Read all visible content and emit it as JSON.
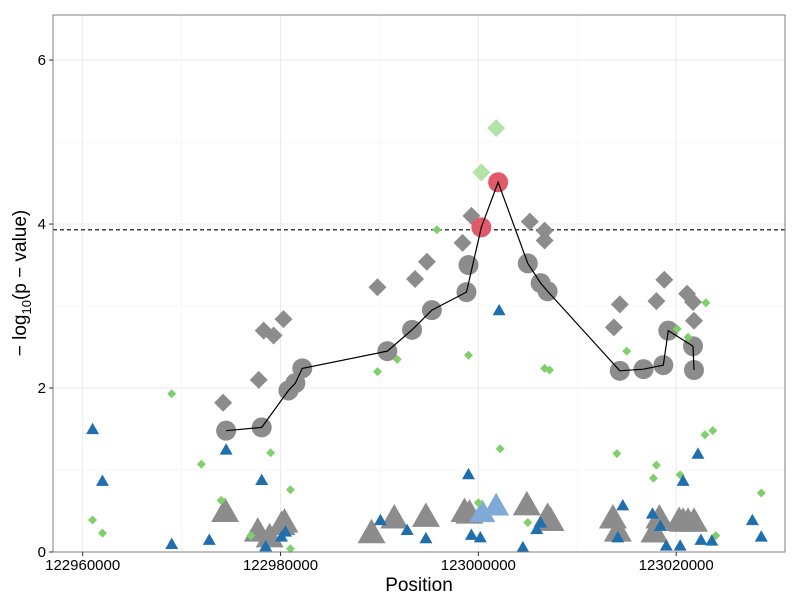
{
  "chart_data": {
    "type": "scatter",
    "xlabel": "Position",
    "ylabel_parts": {
      "pre": "− log",
      "sub": "10",
      "post": "(p − value)"
    },
    "xlim": [
      122957000,
      123031000
    ],
    "ylim": [
      0,
      6.55
    ],
    "x_ticks": [
      122960000,
      122980000,
      123000000,
      123020000
    ],
    "x_tick_labels": [
      "122960000",
      "122980000",
      "123000000",
      "123020000"
    ],
    "y_ticks": [
      0,
      2,
      4,
      6
    ],
    "y_tick_labels": [
      "0",
      "2",
      "4",
      "6"
    ],
    "threshold": 3.93,
    "grid": true,
    "legend": "none",
    "colors": {
      "gray": "#8c8c8c",
      "green": "#7fcf6b",
      "green_light": "#b5e2a6",
      "blue": "#1f6fae",
      "blue_light": "#7fa9d6",
      "red": "#e05a6a",
      "line": "#000000"
    },
    "series": [
      {
        "key": "gray_circles",
        "shape": "circle",
        "color": "gray",
        "size": 10,
        "points": [
          [
            122974500,
            1.48
          ],
          [
            122978100,
            1.52
          ],
          [
            122980800,
            1.97
          ],
          [
            122981500,
            2.06
          ],
          [
            122982200,
            2.24
          ],
          [
            122990800,
            2.45
          ],
          [
            122993300,
            2.71
          ],
          [
            122995300,
            2.95
          ],
          [
            122998800,
            3.17
          ],
          [
            122999000,
            3.5
          ],
          [
            123005000,
            3.52
          ],
          [
            123006300,
            3.28
          ],
          [
            123007000,
            3.18
          ],
          [
            123014300,
            2.21
          ],
          [
            123016700,
            2.23
          ],
          [
            123018700,
            2.28
          ],
          [
            123019200,
            2.7
          ],
          [
            123021700,
            2.51
          ],
          [
            123021800,
            2.22
          ]
        ]
      },
      {
        "key": "gray_diamonds",
        "shape": "diamond",
        "color": "gray",
        "size": 9,
        "points": [
          [
            122974200,
            1.82
          ],
          [
            122977800,
            2.1
          ],
          [
            122978300,
            2.7
          ],
          [
            122979300,
            2.64
          ],
          [
            122980300,
            2.84
          ],
          [
            122980900,
            2.01
          ],
          [
            122989800,
            3.23
          ],
          [
            122993600,
            3.33
          ],
          [
            122994800,
            3.54
          ],
          [
            122998400,
            3.77
          ],
          [
            122999300,
            4.1
          ],
          [
            123005200,
            4.03
          ],
          [
            123006700,
            3.92
          ],
          [
            123006700,
            3.8
          ],
          [
            123013700,
            2.74
          ],
          [
            123014300,
            3.02
          ],
          [
            123018000,
            3.06
          ],
          [
            123018800,
            3.32
          ],
          [
            123021100,
            3.15
          ],
          [
            123021700,
            3.05
          ],
          [
            123021800,
            2.82
          ]
        ]
      },
      {
        "key": "gray_triangles",
        "shape": "triangle",
        "color": "gray",
        "size": 14,
        "points": [
          [
            122974400,
            0.48
          ],
          [
            122977700,
            0.24
          ],
          [
            122978900,
            0.17
          ],
          [
            122980100,
            0.32
          ],
          [
            122980400,
            0.35
          ],
          [
            122989200,
            0.22
          ],
          [
            122991500,
            0.4
          ],
          [
            122994700,
            0.42
          ],
          [
            122998600,
            0.48
          ],
          [
            122999100,
            0.46
          ],
          [
            123004900,
            0.56
          ],
          [
            123007000,
            0.42
          ],
          [
            123007300,
            0.37
          ],
          [
            123013600,
            0.4
          ],
          [
            123014100,
            0.24
          ],
          [
            123017800,
            0.23
          ],
          [
            123018300,
            0.4
          ],
          [
            123020300,
            0.37
          ],
          [
            123020700,
            0.36
          ],
          [
            123021200,
            0.36
          ],
          [
            123021800,
            0.36
          ]
        ]
      },
      {
        "key": "blue_light_triangles",
        "shape": "triangle",
        "color": "blue_light",
        "size": 13,
        "points": [
          [
            123000400,
            0.47
          ],
          [
            123001800,
            0.55
          ]
        ]
      },
      {
        "key": "green_diamonds",
        "shape": "diamond",
        "color": "green",
        "size": 4.5,
        "points": [
          [
            122961000,
            0.39
          ],
          [
            122962000,
            0.23
          ],
          [
            122969000,
            1.93
          ],
          [
            122972000,
            1.07
          ],
          [
            122974000,
            0.63
          ],
          [
            122977000,
            0.2
          ],
          [
            122979000,
            1.21
          ],
          [
            122981000,
            0.76
          ],
          [
            122981000,
            0.04
          ],
          [
            122989800,
            2.2
          ],
          [
            122991800,
            2.35
          ],
          [
            122995800,
            3.93
          ],
          [
            122999000,
            2.4
          ],
          [
            123000000,
            0.6
          ],
          [
            123002200,
            1.26
          ],
          [
            123005000,
            0.36
          ],
          [
            123007200,
            2.22
          ],
          [
            123006700,
            2.24
          ],
          [
            123014000,
            1.2
          ],
          [
            123015000,
            2.45
          ],
          [
            123017700,
            0.9
          ],
          [
            123018000,
            1.06
          ],
          [
            123020100,
            2.72
          ],
          [
            123020400,
            0.94
          ],
          [
            123021200,
            2.62
          ],
          [
            123022900,
            1.43
          ],
          [
            123023000,
            3.04
          ],
          [
            123023700,
            1.48
          ],
          [
            123024000,
            0.2
          ],
          [
            123027700,
            0.38
          ],
          [
            123028600,
            0.72
          ]
        ]
      },
      {
        "key": "green_light_diamonds",
        "shape": "diamond",
        "color": "green_light",
        "size": 9,
        "points": [
          [
            123000300,
            4.63
          ],
          [
            123001800,
            5.17
          ]
        ]
      },
      {
        "key": "blue_triangles",
        "shape": "triangle",
        "color": "blue",
        "size": 6.5,
        "points": [
          [
            122961000,
            1.49
          ],
          [
            122962000,
            0.86
          ],
          [
            122969000,
            0.09
          ],
          [
            122972800,
            0.14
          ],
          [
            122974500,
            1.24
          ],
          [
            122978100,
            0.87
          ],
          [
            122978500,
            0.06
          ],
          [
            122980100,
            0.18
          ],
          [
            122980500,
            0.24
          ],
          [
            122990100,
            0.38
          ],
          [
            122992800,
            0.26
          ],
          [
            122994700,
            0.16
          ],
          [
            122999000,
            0.94
          ],
          [
            122999300,
            0.2
          ],
          [
            123000200,
            0.17
          ],
          [
            123002100,
            2.94
          ],
          [
            123004500,
            0.05
          ],
          [
            123005900,
            0.27
          ],
          [
            123006300,
            0.35
          ],
          [
            123014100,
            0.17
          ],
          [
            123014600,
            0.56
          ],
          [
            123017600,
            0.46
          ],
          [
            123018400,
            0.31
          ],
          [
            123019000,
            0.07
          ],
          [
            123020400,
            0.07
          ],
          [
            123020700,
            0.86
          ],
          [
            123022200,
            1.19
          ],
          [
            123022500,
            0.14
          ],
          [
            123023600,
            0.13
          ],
          [
            123027700,
            0.38
          ],
          [
            123028600,
            0.18
          ]
        ]
      },
      {
        "key": "red_circles",
        "shape": "circle",
        "color": "red",
        "size": 10,
        "points": [
          [
            123000300,
            3.96
          ],
          [
            123002000,
            4.51
          ]
        ]
      }
    ],
    "line": [
      [
        122974500,
        1.48
      ],
      [
        122978100,
        1.52
      ],
      [
        122980800,
        1.97
      ],
      [
        122981500,
        2.06
      ],
      [
        122982200,
        2.24
      ],
      [
        122990800,
        2.45
      ],
      [
        122993300,
        2.71
      ],
      [
        122995300,
        2.95
      ],
      [
        122998800,
        3.17
      ],
      [
        123000300,
        3.96
      ],
      [
        123002000,
        4.51
      ],
      [
        123005000,
        3.52
      ],
      [
        123006300,
        3.28
      ],
      [
        123007000,
        3.18
      ],
      [
        123014300,
        2.21
      ],
      [
        123016700,
        2.23
      ],
      [
        123018700,
        2.28
      ],
      [
        123019200,
        2.7
      ],
      [
        123021700,
        2.51
      ],
      [
        123021800,
        2.22
      ]
    ]
  }
}
